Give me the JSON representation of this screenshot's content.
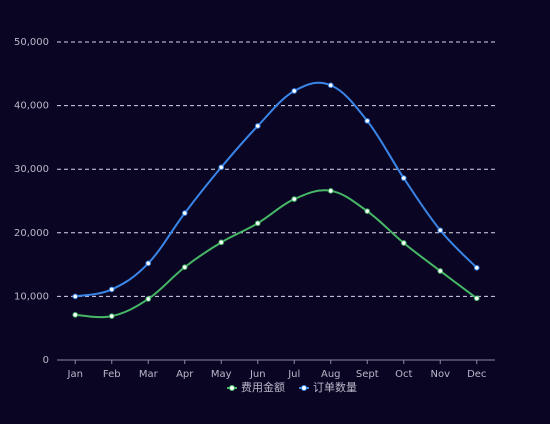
{
  "chart_data": {
    "type": "line",
    "categories": [
      "Jan",
      "Feb",
      "Mar",
      "Apr",
      "May",
      "Jun",
      "Jul",
      "Aug",
      "Sept",
      "Oct",
      "Nov",
      "Dec"
    ],
    "series": [
      {
        "name": "费用金额",
        "color": "#46b866",
        "values": [
          7100,
          6900,
          9600,
          14600,
          18500,
          21500,
          25300,
          26600,
          23400,
          18400,
          14000,
          9700
        ]
      },
      {
        "name": "订单数量",
        "color": "#3a86e8",
        "values": [
          10000,
          11100,
          15200,
          23100,
          30300,
          36800,
          42300,
          43200,
          37600,
          28600,
          20400,
          14500
        ]
      }
    ],
    "ylim": [
      0,
      50000
    ],
    "yticks": [
      0,
      {
        "value": 10000,
        "label": "10,000"
      },
      {
        "value": 20000,
        "label": "20,000"
      },
      {
        "value": 30000,
        "label": "30,000"
      },
      {
        "value": 40000,
        "label": "40,000"
      },
      {
        "value": 50000,
        "label": "50,000"
      }
    ],
    "grid": true,
    "legend": "bottom"
  }
}
